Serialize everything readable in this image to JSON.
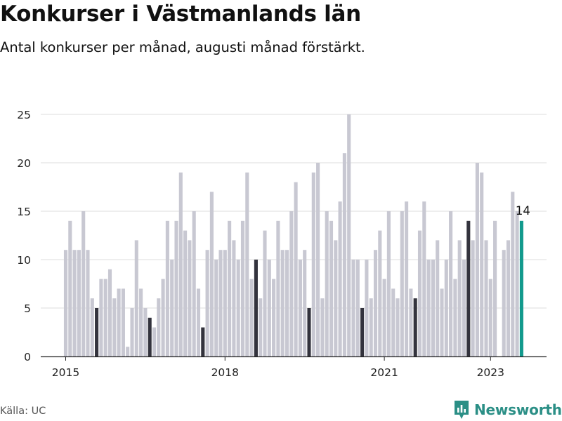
{
  "title": "Konkurser i Västmanlands län",
  "subtitle": "Antal konkurser per månad, augusti månad förstärkt.",
  "source": "Källa: UC",
  "brand": "Newsworthy",
  "colors": {
    "normal": "#c8c8d2",
    "august": "#33333d",
    "latest": "#129a8d",
    "brand": "#2b8f86"
  },
  "chart_data": {
    "type": "bar",
    "start": "2015-01",
    "values": [
      11,
      14,
      11,
      11,
      15,
      11,
      6,
      5,
      8,
      8,
      9,
      6,
      7,
      7,
      1,
      5,
      12,
      7,
      5,
      4,
      3,
      6,
      8,
      14,
      10,
      14,
      19,
      13,
      12,
      15,
      7,
      3,
      11,
      17,
      10,
      11,
      11,
      14,
      12,
      10,
      14,
      19,
      8,
      10,
      6,
      13,
      10,
      8,
      14,
      11,
      11,
      15,
      18,
      10,
      11,
      5,
      19,
      20,
      6,
      15,
      14,
      12,
      16,
      21,
      25,
      10,
      10,
      5,
      10,
      6,
      11,
      13,
      8,
      15,
      7,
      6,
      15,
      16,
      7,
      6,
      13,
      16,
      10,
      10,
      12,
      7,
      10,
      15,
      8,
      12,
      10,
      14,
      12,
      20,
      19,
      12,
      8,
      14,
      0,
      11,
      12,
      17,
      15,
      14
    ],
    "highlight_month": 8,
    "latest_label": "14",
    "yticks": [
      0,
      5,
      10,
      15,
      20,
      25
    ],
    "ylim": [
      0,
      25
    ],
    "xticks": [
      {
        "label": "2015",
        "index": 0
      },
      {
        "label": "2018",
        "index": 36
      },
      {
        "label": "2021",
        "index": 72
      },
      {
        "label": "2023",
        "index": 96
      }
    ]
  }
}
